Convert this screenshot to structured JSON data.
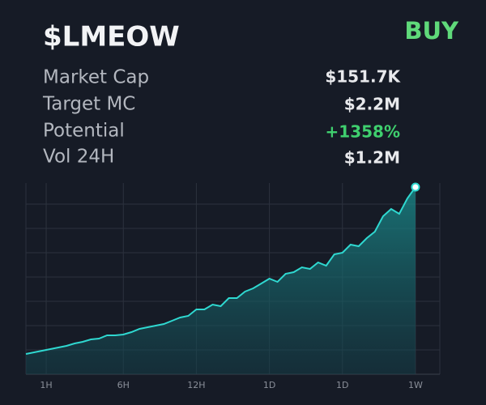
{
  "header": {
    "title": "$LMEOW",
    "action": "BUY"
  },
  "stats": [
    {
      "label": "Market Cap",
      "value": "$151.7K"
    },
    {
      "label": "Target MC",
      "value": "$2.2M"
    },
    {
      "label": "Potential",
      "value": "+1358%"
    },
    {
      "label": "Vol 24H",
      "value": "$1.2M"
    }
  ],
  "chart_data": {
    "type": "line",
    "color": "#2fd8d0",
    "x": [
      0,
      1,
      2,
      3,
      4,
      5,
      6,
      7,
      8,
      9,
      10,
      11,
      12,
      13,
      14,
      15,
      16,
      17,
      18,
      19,
      20,
      21,
      22,
      23,
      24,
      25,
      26,
      27,
      28,
      29,
      30,
      31,
      32,
      33,
      34,
      35,
      36,
      37,
      38,
      39,
      40,
      41,
      42,
      43,
      44,
      45,
      46,
      47,
      48
    ],
    "values": [
      25,
      27,
      29,
      31,
      33,
      35,
      38,
      40,
      43,
      44,
      48,
      48,
      49,
      52,
      56,
      58,
      60,
      62,
      66,
      70,
      72,
      80,
      80,
      86,
      84,
      94,
      94,
      102,
      106,
      112,
      118,
      114,
      124,
      126,
      132,
      130,
      138,
      134,
      148,
      150,
      160,
      158,
      168,
      176,
      195,
      204,
      198,
      217,
      231
    ],
    "xlim": [
      0,
      51
    ],
    "ylim": [
      0,
      236
    ],
    "xticks": [
      {
        "value": 2.5,
        "label": "1H"
      },
      {
        "value": 12,
        "label": "6H"
      },
      {
        "value": 21,
        "label": "12H"
      },
      {
        "value": 30,
        "label": "1D"
      },
      {
        "value": 39,
        "label": "1D"
      },
      {
        "value": 48,
        "label": "1W"
      }
    ],
    "yticks": [
      30,
      60,
      90,
      120,
      150,
      180,
      210
    ],
    "grid": true
  }
}
